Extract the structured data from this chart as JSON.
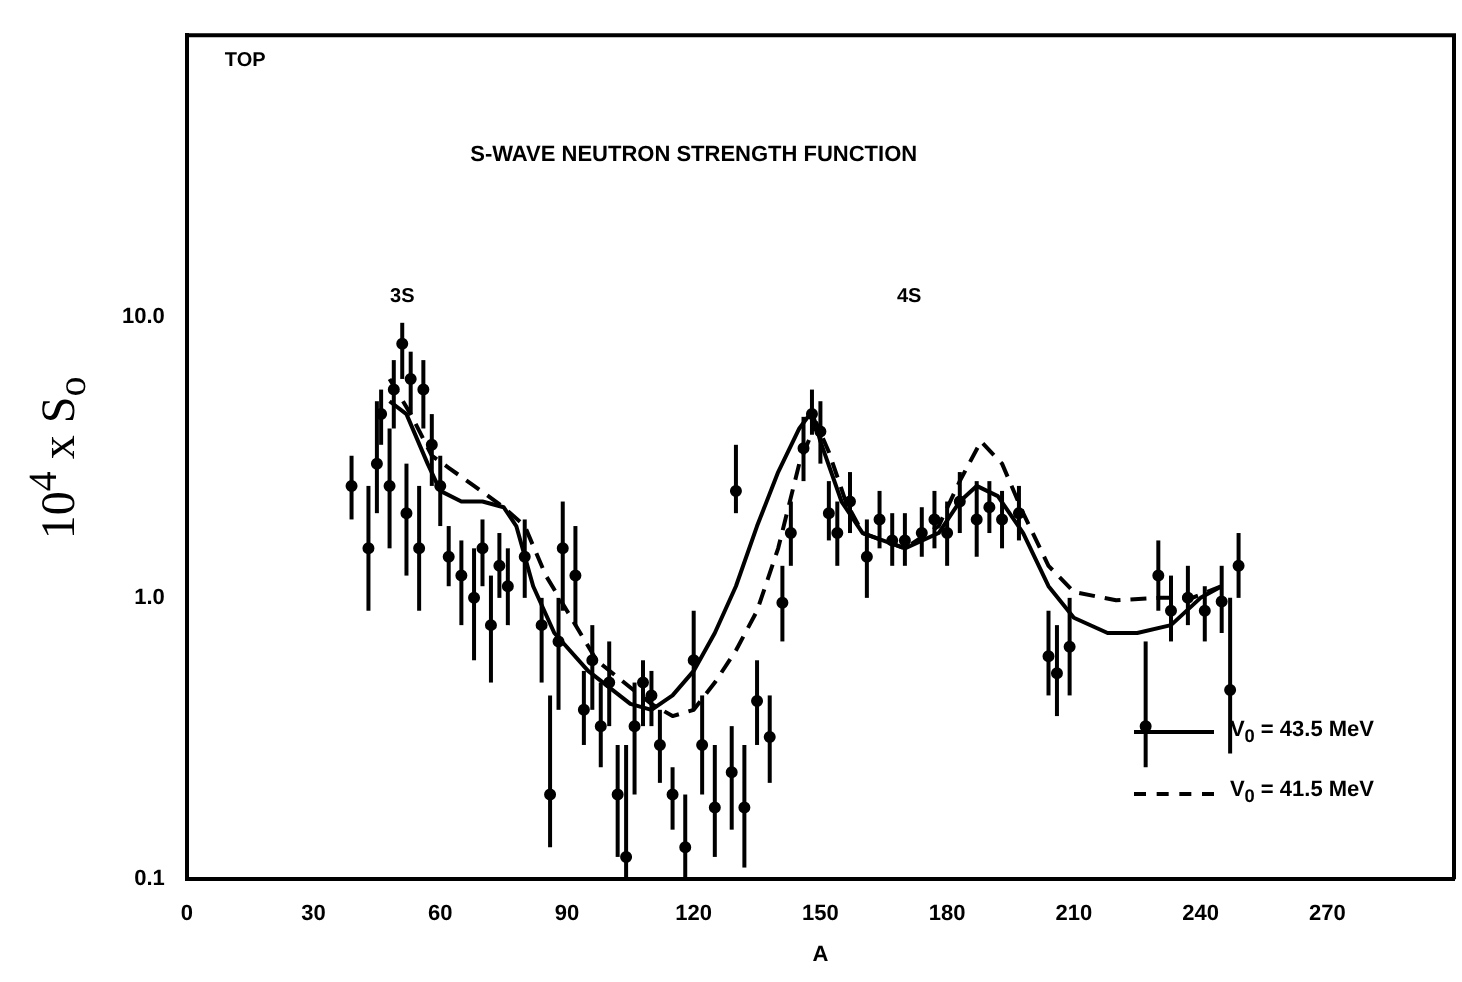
{
  "chart_data": {
    "type": "scatter",
    "title": "S-WAVE NEUTRON STRENGTH FUNCTION",
    "xlabel": "A",
    "ylabel": "10$^{4}$ x S$_{o}$",
    "annotations": [
      "TOP",
      "3S",
      "4S"
    ],
    "log": "y",
    "xlim": [
      0,
      300
    ],
    "ylim": [
      0.1,
      100
    ],
    "xticks": [
      0,
      30,
      60,
      90,
      120,
      150,
      180,
      210,
      240,
      270
    ],
    "yticks": [
      0.1,
      {
        "value": 1,
        "label": "1.0"
      },
      {
        "value": 10,
        "label": "10.0"
      }
    ],
    "grid": false,
    "legend": "bottom right",
    "series": [
      {
        "color": "#000000",
        "marker": "circle",
        "x": [
          39,
          43,
          45,
          46,
          48,
          49,
          51,
          52,
          53,
          55,
          56,
          58,
          60,
          62,
          65,
          68,
          70,
          72,
          74,
          76,
          80,
          84,
          86,
          88,
          89,
          92,
          94,
          96,
          98,
          100,
          102,
          104,
          106,
          108,
          110,
          112,
          115,
          118,
          120,
          122,
          125,
          129,
          130,
          132,
          135,
          138,
          141,
          143,
          146,
          148,
          150,
          152,
          154,
          157,
          161,
          164,
          167,
          170,
          174,
          177,
          180,
          183,
          187,
          190,
          193,
          197,
          204,
          206,
          209,
          227,
          230,
          233,
          237,
          241,
          245,
          247,
          249
        ],
        "values": [
          2.5,
          1.5,
          3.0,
          4.5,
          2.5,
          5.5,
          8.0,
          2.0,
          6.0,
          1.5,
          5.5,
          3.5,
          2.5,
          1.4,
          1.2,
          1.0,
          1.5,
          0.8,
          1.3,
          1.1,
          1.4,
          0.8,
          0.2,
          0.7,
          1.5,
          1.2,
          0.4,
          0.6,
          0.35,
          0.5,
          0.2,
          0.12,
          0.35,
          0.5,
          0.45,
          0.3,
          0.2,
          0.13,
          0.6,
          0.3,
          0.18,
          0.24,
          2.4,
          0.18,
          0.43,
          0.32,
          0.96,
          1.7,
          3.4,
          4.5,
          3.9,
          2.0,
          1.7,
          2.2,
          1.4,
          1.9,
          1.6,
          1.6,
          1.7,
          1.9,
          1.7,
          2.2,
          1.9,
          2.1,
          1.9,
          2.0,
          0.62,
          0.54,
          0.67,
          0.35,
          1.2,
          0.9,
          1.0,
          0.9,
          0.97,
          0.47,
          1.3
        ],
        "errors": [
          [
            1.9,
            3.2
          ],
          [
            0.9,
            2.5
          ],
          [
            2.0,
            5.0
          ],
          [
            3.5,
            5.5
          ],
          [
            1.5,
            4.0
          ],
          [
            4.0,
            7.0
          ],
          [
            6.0,
            9.5
          ],
          [
            1.2,
            3.0
          ],
          [
            4.5,
            7.5
          ],
          [
            0.9,
            2.5
          ],
          [
            4.0,
            7.0
          ],
          [
            2.5,
            4.5
          ],
          [
            1.8,
            3.2
          ],
          [
            1.1,
            1.8
          ],
          [
            0.8,
            1.6
          ],
          [
            0.6,
            1.5
          ],
          [
            1.1,
            1.9
          ],
          [
            0.5,
            1.2
          ],
          [
            1.0,
            1.7
          ],
          [
            0.8,
            1.5
          ],
          [
            1.0,
            1.9
          ],
          [
            0.5,
            1.0
          ],
          [
            0.13,
            0.45
          ],
          [
            0.4,
            1.0
          ],
          [
            0.9,
            2.2
          ],
          [
            0.8,
            1.8
          ],
          [
            0.3,
            0.55
          ],
          [
            0.4,
            0.8
          ],
          [
            0.25,
            0.5
          ],
          [
            0.35,
            0.7
          ],
          [
            0.12,
            0.3
          ],
          [
            0.1,
            0.3
          ],
          [
            0.2,
            0.5
          ],
          [
            0.35,
            0.6
          ],
          [
            0.35,
            0.55
          ],
          [
            0.22,
            0.4
          ],
          [
            0.15,
            0.25
          ],
          [
            0.1,
            0.2
          ],
          [
            0.4,
            0.9
          ],
          [
            0.2,
            0.45
          ],
          [
            0.12,
            0.3
          ],
          [
            0.15,
            0.35
          ],
          [
            2.0,
            3.5
          ],
          [
            0.11,
            0.3
          ],
          [
            0.3,
            0.6
          ],
          [
            0.22,
            0.45
          ],
          [
            0.7,
            1.3
          ],
          [
            1.3,
            2.2
          ],
          [
            2.6,
            4.4
          ],
          [
            3.8,
            5.5
          ],
          [
            3.0,
            5.0
          ],
          [
            1.6,
            2.6
          ],
          [
            1.3,
            2.2
          ],
          [
            1.7,
            2.8
          ],
          [
            1.0,
            1.9
          ],
          [
            1.5,
            2.4
          ],
          [
            1.3,
            2.0
          ],
          [
            1.3,
            2.0
          ],
          [
            1.4,
            2.1
          ],
          [
            1.5,
            2.4
          ],
          [
            1.3,
            2.2
          ],
          [
            1.7,
            2.8
          ],
          [
            1.4,
            2.6
          ],
          [
            1.7,
            2.6
          ],
          [
            1.5,
            2.4
          ],
          [
            1.6,
            2.5
          ],
          [
            0.45,
            0.9
          ],
          [
            0.38,
            0.8
          ],
          [
            0.45,
            1.0
          ],
          [
            0.25,
            0.7
          ],
          [
            0.9,
            1.6
          ],
          [
            0.7,
            1.2
          ],
          [
            0.8,
            1.3
          ],
          [
            0.7,
            1.1
          ],
          [
            0.75,
            1.3
          ],
          [
            0.28,
            1.0
          ],
          [
            1.0,
            1.7
          ]
        ]
      },
      {
        "type": "line",
        "name": "V$_{0}$ = 43.5 MeV",
        "color": "#000000",
        "marker": "none",
        "line_style": "solid",
        "x": [
          48,
          52,
          57,
          60,
          65,
          70,
          75,
          78,
          82,
          87,
          95,
          105,
          110,
          115,
          120,
          125,
          130,
          135,
          140,
          145,
          148,
          150,
          155,
          160,
          170,
          178,
          183,
          187,
          192,
          198,
          204,
          210,
          218,
          225,
          233,
          240,
          245
        ],
        "values": [
          5.0,
          4.5,
          3.0,
          2.4,
          2.2,
          2.2,
          2.1,
          1.8,
          1.1,
          0.75,
          0.55,
          0.42,
          0.4,
          0.45,
          0.55,
          0.75,
          1.1,
          1.8,
          2.8,
          4.0,
          4.6,
          3.6,
          2.2,
          1.7,
          1.5,
          1.7,
          2.2,
          2.5,
          2.3,
          1.7,
          1.1,
          0.85,
          0.75,
          0.75,
          0.8,
          1.0,
          1.1
        ]
      },
      {
        "type": "line",
        "name": "V$_{0}$ = 41.5 MeV",
        "color": "#000000",
        "marker": "none",
        "line_style": "dashed",
        "x": [
          48,
          53,
          58,
          62,
          68,
          75,
          80,
          85,
          90,
          97,
          105,
          110,
          115,
          120,
          125,
          130,
          135,
          140,
          145,
          149,
          152,
          156,
          160,
          170,
          178,
          183,
          188,
          193,
          198,
          204,
          210,
          220,
          230,
          238,
          245
        ],
        "values": [
          6.0,
          4.5,
          3.2,
          2.9,
          2.5,
          2.1,
          1.8,
          1.2,
          0.9,
          0.6,
          0.48,
          0.42,
          0.38,
          0.4,
          0.5,
          0.65,
          0.9,
          1.5,
          3.0,
          4.2,
          3.3,
          2.2,
          1.7,
          1.5,
          1.8,
          2.6,
          3.6,
          3.0,
          2.0,
          1.3,
          1.05,
          0.98,
          1.0,
          1.0,
          1.1
        ]
      }
    ]
  }
}
